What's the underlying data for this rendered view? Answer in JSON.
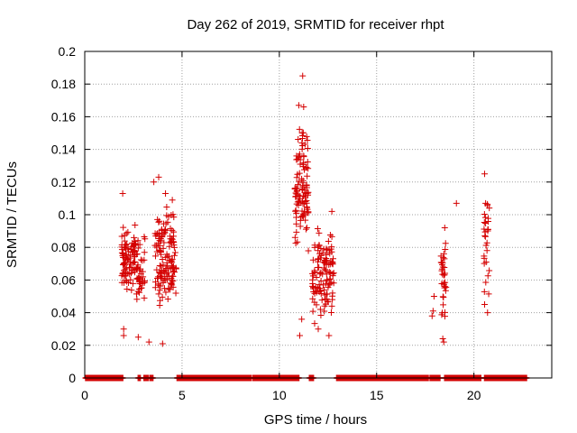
{
  "chart_data": {
    "type": "scatter",
    "title": "Day 262 of 2019, SRMTID for receiver rhpt",
    "xlabel": "GPS time / hours",
    "ylabel": "SRMTID / TECUs",
    "xlim": [
      0,
      24
    ],
    "ylim": [
      0,
      0.2
    ],
    "x_ticks": [
      0,
      5,
      10,
      15,
      20
    ],
    "y_ticks": [
      0,
      0.02,
      0.04,
      0.06,
      0.08,
      0.1,
      0.12,
      0.14,
      0.16,
      0.18,
      0.2
    ],
    "x_tick_labels": [
      "0",
      "5",
      "10",
      "15",
      "20"
    ],
    "y_tick_labels": [
      "0",
      "0.02",
      "0.04",
      "0.06",
      "0.08",
      "0.1",
      "0.12",
      "0.14",
      "0.16",
      "0.18",
      "0.2"
    ],
    "grid": true,
    "marker": "+",
    "color": "#d40000",
    "clusters": [
      {
        "x_range": [
          1.9,
          2.6
        ],
        "y_range": [
          0.045,
          0.1
        ],
        "count": 90
      },
      {
        "x_range": [
          2.6,
          3.1
        ],
        "y_range": [
          0.04,
          0.095
        ],
        "count": 45
      },
      {
        "x_range": [
          3.6,
          4.7
        ],
        "y_range": [
          0.03,
          0.115
        ],
        "count": 140
      },
      {
        "x_range": [
          10.8,
          11.5
        ],
        "y_range": [
          0.06,
          0.17
        ],
        "count": 110
      },
      {
        "x_range": [
          11.7,
          12.8
        ],
        "y_range": [
          0.03,
          0.1
        ],
        "count": 120
      },
      {
        "x_range": [
          18.3,
          18.6
        ],
        "y_range": [
          0.03,
          0.09
        ],
        "count": 35
      },
      {
        "x_range": [
          20.5,
          20.8
        ],
        "y_range": [
          0.04,
          0.125
        ],
        "count": 28
      }
    ],
    "points": [
      [
        1.95,
        0.113
      ],
      [
        2.0,
        0.03
      ],
      [
        2.0,
        0.026
      ],
      [
        2.75,
        0.025
      ],
      [
        3.3,
        0.022
      ],
      [
        3.55,
        0.12
      ],
      [
        3.8,
        0.123
      ],
      [
        4.0,
        0.021
      ],
      [
        4.15,
        0.113
      ],
      [
        4.5,
        0.109
      ],
      [
        11.0,
        0.167
      ],
      [
        11.2,
        0.185
      ],
      [
        11.25,
        0.166
      ],
      [
        11.05,
        0.026
      ],
      [
        11.15,
        0.036
      ],
      [
        12.0,
        0.03
      ],
      [
        12.55,
        0.026
      ],
      [
        12.7,
        0.102
      ],
      [
        17.95,
        0.05
      ],
      [
        17.9,
        0.041
      ],
      [
        17.85,
        0.038
      ],
      [
        18.4,
        0.024
      ],
      [
        18.45,
        0.022
      ],
      [
        18.5,
        0.092
      ],
      [
        19.1,
        0.107
      ],
      [
        20.55,
        0.125
      ],
      [
        20.6,
        0.107
      ],
      [
        20.55,
        0.045
      ],
      [
        20.7,
        0.04
      ]
    ],
    "zero_band_segments": [
      [
        0.05,
        1.95
      ],
      [
        2.75,
        2.85
      ],
      [
        3.05,
        3.25
      ],
      [
        3.35,
        3.5
      ],
      [
        4.75,
        8.55
      ],
      [
        8.65,
        11.0
      ],
      [
        11.55,
        11.75
      ],
      [
        12.95,
        17.65
      ],
      [
        17.75,
        18.25
      ],
      [
        18.5,
        20.35
      ],
      [
        20.55,
        22.7
      ]
    ]
  }
}
